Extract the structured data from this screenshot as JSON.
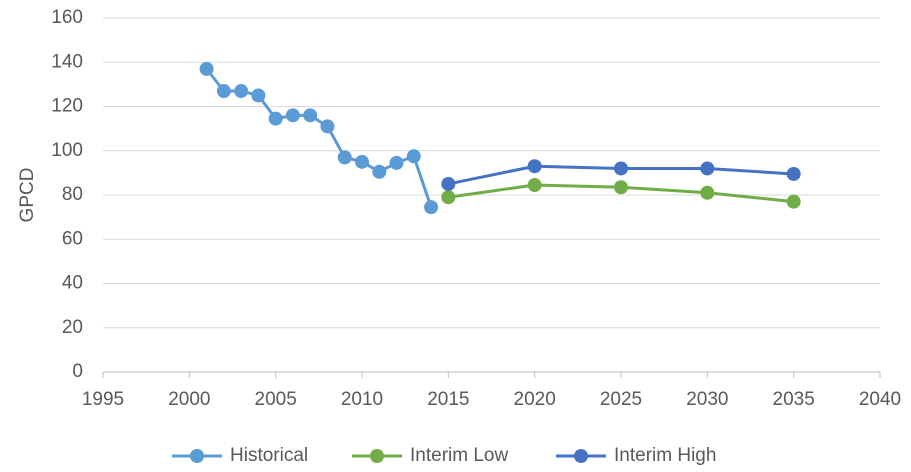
{
  "chart_data": {
    "type": "line",
    "ylabel": "GPCD",
    "xlim": [
      1995,
      2040
    ],
    "xticks": [
      1995,
      2000,
      2005,
      2010,
      2015,
      2020,
      2025,
      2030,
      2035,
      2040
    ],
    "ylim": [
      0,
      160
    ],
    "yticks": [
      0,
      20,
      40,
      60,
      80,
      100,
      120,
      140,
      160
    ],
    "grid": true,
    "legend": "bottom",
    "series": [
      {
        "name": "Historical",
        "color": "#5b9bd5",
        "x": [
          2001,
          2002,
          2003,
          2004,
          2005,
          2006,
          2007,
          2008,
          2009,
          2010,
          2011,
          2012,
          2013,
          2014
        ],
        "values": [
          137,
          127,
          127,
          125,
          114.5,
          116,
          116,
          111,
          97,
          95,
          90.5,
          94.5,
          97.5,
          74.5
        ]
      },
      {
        "name": "Interim Low",
        "color": "#70ad47",
        "x": [
          2015,
          2020,
          2025,
          2030,
          2035
        ],
        "values": [
          79,
          84.5,
          83.5,
          81,
          77
        ]
      },
      {
        "name": "Interim High",
        "color": "#4472c4",
        "x": [
          2015,
          2020,
          2025,
          2030,
          2035
        ],
        "values": [
          85,
          93,
          92,
          92,
          89.5
        ]
      }
    ]
  }
}
